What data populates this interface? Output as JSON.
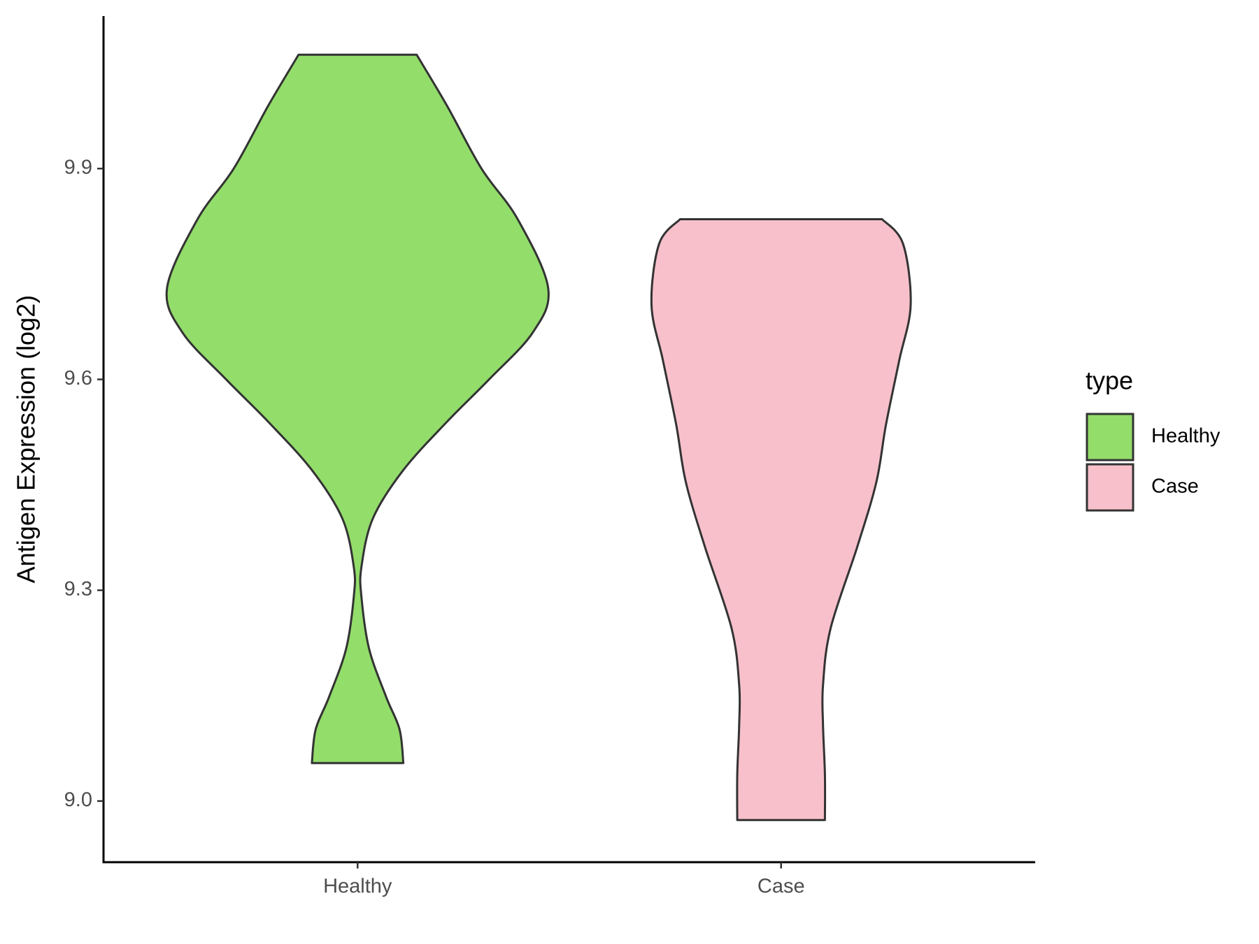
{
  "chart_data": {
    "type": "violin",
    "y_label": "Antigen Expression (log2)",
    "categories": [
      "Healthy",
      "Case"
    ],
    "series": [
      {
        "name": "Healthy",
        "color": "#93dd6b",
        "y": [
          10.062,
          9.989,
          9.9,
          9.828,
          9.73,
          9.667,
          9.6,
          9.54,
          9.471,
          9.402,
          9.333,
          9.291,
          9.217,
          9.148,
          9.102,
          9.054
        ],
        "density": [
          0.31,
          0.47,
          0.65,
          0.84,
          1.0,
          0.92,
          0.69,
          0.47,
          0.24,
          0.08,
          0.02,
          0.02,
          0.06,
          0.15,
          0.22,
          0.24
        ]
      },
      {
        "name": "Case",
        "color": "#f7c0cb",
        "y": [
          9.828,
          9.793,
          9.706,
          9.627,
          9.535,
          9.454,
          9.362,
          9.246,
          9.165,
          9.108,
          9.038,
          8.973
        ],
        "density": [
          0.53,
          0.64,
          0.68,
          0.62,
          0.55,
          0.5,
          0.4,
          0.26,
          0.22,
          0.22,
          0.23,
          0.23
        ]
      }
    ],
    "ylim": [
      8.913,
      10.117
    ],
    "yticks": [
      {
        "value": 9.0,
        "label": "9.0"
      },
      9.3,
      9.6,
      9.9
    ],
    "legend_title": "type",
    "legend": "right"
  }
}
